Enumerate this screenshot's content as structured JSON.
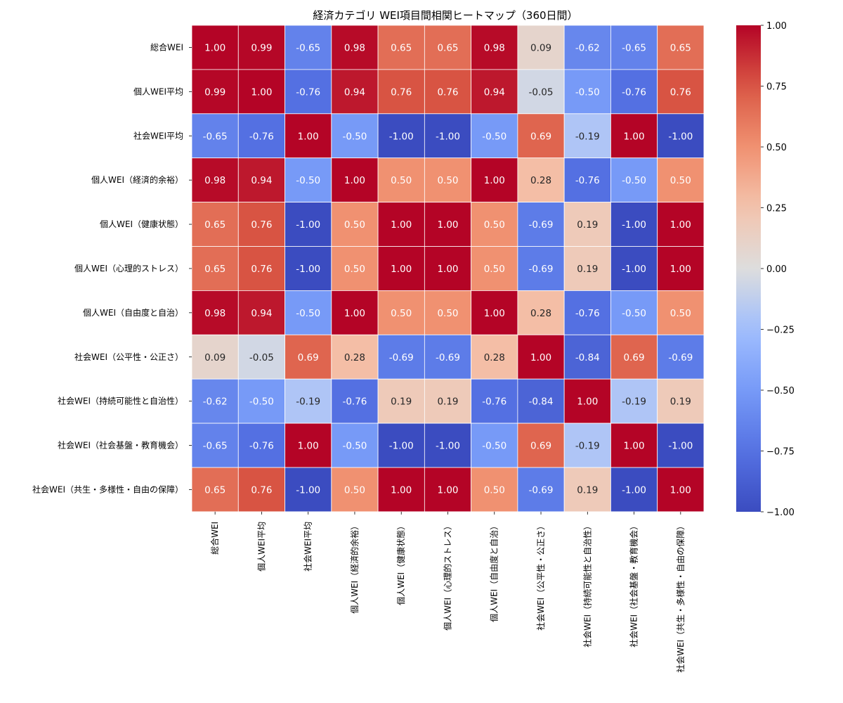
{
  "chart_data": {
    "type": "heatmap",
    "title": "経済カテゴリ WEI項目間相関ヒートマップ（360日間）",
    "labels": [
      "総合WEI",
      "個人WEI平均",
      "社会WEI平均",
      "個人WEI（経済的余裕）",
      "個人WEI（健康状態）",
      "個人WEI（心理的ストレス）",
      "個人WEI（自由度と自治）",
      "社会WEI（公平性・公正さ）",
      "社会WEI（持続可能性と自治性）",
      "社会WEI（社会基盤・教育機会）",
      "社会WEI（共生・多様性・自由の保障）"
    ],
    "matrix": [
      [
        1.0,
        0.99,
        -0.65,
        0.98,
        0.65,
        0.65,
        0.98,
        0.09,
        -0.62,
        -0.65,
        0.65
      ],
      [
        0.99,
        1.0,
        -0.76,
        0.94,
        0.76,
        0.76,
        0.94,
        -0.05,
        -0.5,
        -0.76,
        0.76
      ],
      [
        -0.65,
        -0.76,
        1.0,
        -0.5,
        -1.0,
        -1.0,
        -0.5,
        0.69,
        -0.19,
        1.0,
        -1.0
      ],
      [
        0.98,
        0.94,
        -0.5,
        1.0,
        0.5,
        0.5,
        1.0,
        0.28,
        -0.76,
        -0.5,
        0.5
      ],
      [
        0.65,
        0.76,
        -1.0,
        0.5,
        1.0,
        1.0,
        0.5,
        -0.69,
        0.19,
        -1.0,
        1.0
      ],
      [
        0.65,
        0.76,
        -1.0,
        0.5,
        1.0,
        1.0,
        0.5,
        -0.69,
        0.19,
        -1.0,
        1.0
      ],
      [
        0.98,
        0.94,
        -0.5,
        1.0,
        0.5,
        0.5,
        1.0,
        0.28,
        -0.76,
        -0.5,
        0.5
      ],
      [
        0.09,
        -0.05,
        0.69,
        0.28,
        -0.69,
        -0.69,
        0.28,
        1.0,
        -0.84,
        0.69,
        -0.69
      ],
      [
        -0.62,
        -0.5,
        -0.19,
        -0.76,
        0.19,
        0.19,
        -0.76,
        -0.84,
        1.0,
        -0.19,
        0.19
      ],
      [
        -0.65,
        -0.76,
        1.0,
        -0.5,
        -1.0,
        -1.0,
        -0.5,
        0.69,
        -0.19,
        1.0,
        -1.0
      ],
      [
        0.65,
        0.76,
        -1.0,
        0.5,
        1.0,
        1.0,
        0.5,
        -0.69,
        0.19,
        -1.0,
        1.0
      ]
    ],
    "value_range": [
      -1.0,
      1.0
    ],
    "colormap": "coolwarm",
    "colorbar_ticks": [
      1.0,
      0.75,
      0.5,
      0.25,
      0.0,
      -0.25,
      -0.5,
      -0.75,
      -1.0
    ],
    "colorbar_tick_labels": [
      "1.00",
      "0.75",
      "0.50",
      "0.25",
      "0.00",
      "−0.25",
      "−0.50",
      "−0.75",
      "−1.00"
    ],
    "annotation_format": "2f",
    "legend_position": "right"
  }
}
